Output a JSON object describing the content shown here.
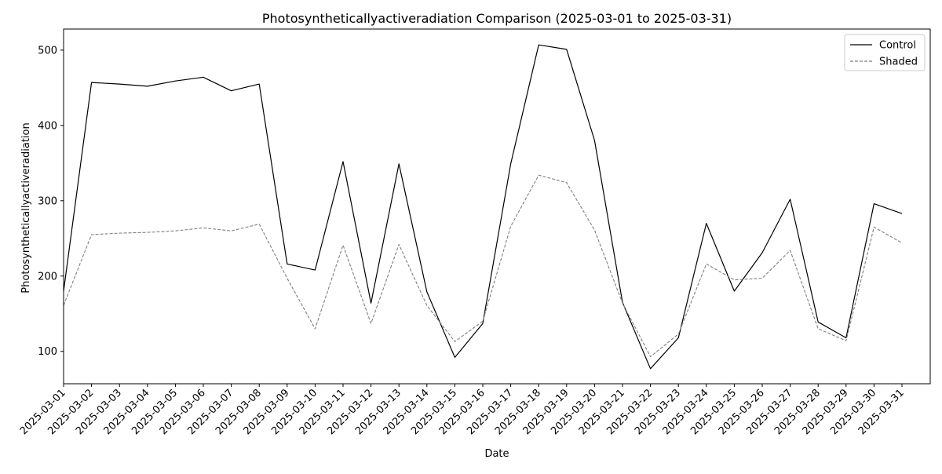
{
  "chart_data": {
    "type": "line",
    "title": "Photosyntheticallyactiveradiation Comparison (2025-03-01 to 2025-03-31)",
    "xlabel": "Date",
    "ylabel": "Photosyntheticallyactiveradiation",
    "ylim": [
      57,
      528
    ],
    "yticks": [
      100,
      200,
      300,
      400,
      500
    ],
    "grid": false,
    "legend_position": "top-right",
    "categories": [
      "2025-03-01",
      "2025-03-02",
      "2025-03-03",
      "2025-03-04",
      "2025-03-05",
      "2025-03-06",
      "2025-03-07",
      "2025-03-08",
      "2025-03-09",
      "2025-03-10",
      "2025-03-11",
      "2025-03-12",
      "2025-03-13",
      "2025-03-14",
      "2025-03-15",
      "2025-03-16",
      "2025-03-17",
      "2025-03-18",
      "2025-03-19",
      "2025-03-20",
      "2025-03-21",
      "2025-03-22",
      "2025-03-23",
      "2025-03-24",
      "2025-03-25",
      "2025-03-26",
      "2025-03-27",
      "2025-03-28",
      "2025-03-29",
      "2025-03-30",
      "2025-03-31"
    ],
    "series": [
      {
        "name": "Control",
        "color": "#000000",
        "style": "solid",
        "values": [
          180,
          457,
          455,
          452,
          459,
          464,
          446,
          455,
          216,
          208,
          352,
          164,
          349,
          179,
          92,
          137,
          349,
          507,
          501,
          380,
          165,
          77,
          118,
          270,
          180,
          231,
          302,
          139,
          118,
          296,
          283
        ]
      },
      {
        "name": "Shaded",
        "color": "#808080",
        "style": "dashed",
        "values": [
          161,
          255,
          257,
          258,
          260,
          264,
          260,
          269,
          197,
          130,
          241,
          137,
          242,
          161,
          113,
          140,
          266,
          334,
          324,
          261,
          164,
          93,
          123,
          216,
          195,
          197,
          234,
          130,
          114,
          265,
          244
        ]
      }
    ]
  }
}
